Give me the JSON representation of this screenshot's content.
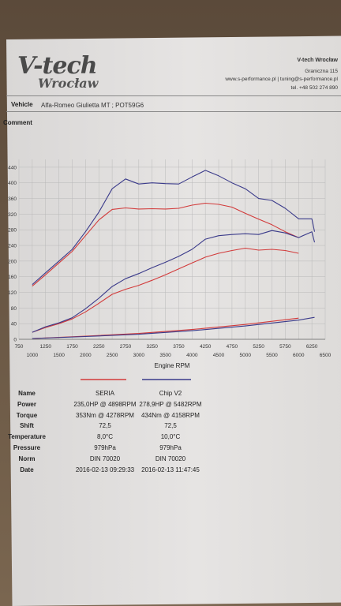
{
  "header": {
    "logo_main": "V-tech",
    "logo_sub": "Wrocław",
    "company": "V-tech Wrocław",
    "street": "Graniczna 115",
    "web": "www.s-performance.pl | tuning@s-performance.pl",
    "phone": "tel. +48 502 274 890"
  },
  "info": {
    "vehicle_label": "Vehicle",
    "vehicle_value": "Alfa-Romeo Giulietta MT ; POT59G6",
    "comment_label": "Comment"
  },
  "colors": {
    "seria": "#d23a3a",
    "chip": "#3a3a8a",
    "grid": "#b9b9b9"
  },
  "chart_data": {
    "type": "line",
    "xlabel": "Engine RPM",
    "xlim": [
      750,
      6500
    ],
    "ylim": [
      0,
      460
    ],
    "yticks": [
      0,
      40,
      80,
      120,
      160,
      200,
      240,
      280,
      320,
      360,
      400,
      440
    ],
    "xticks_top": [
      750,
      1250,
      1750,
      2250,
      2750,
      3250,
      3750,
      4250,
      4750,
      5250,
      5750,
      6250
    ],
    "xticks_bottom": [
      1000,
      1500,
      2000,
      2500,
      3000,
      3500,
      4000,
      4500,
      5000,
      5500,
      6000,
      6500
    ],
    "series": [
      {
        "name": "SERIA",
        "kind": "torque",
        "color": "#d23a3a",
        "x": [
          1000,
          1250,
          1500,
          1750,
          2000,
          2250,
          2500,
          2750,
          3000,
          3250,
          3500,
          3750,
          4000,
          4250,
          4500,
          4750,
          5000,
          5250,
          5500,
          5750,
          6000
        ],
        "y": [
          136,
          165,
          195,
          225,
          265,
          305,
          332,
          336,
          333,
          334,
          333,
          335,
          343,
          348,
          345,
          338,
          322,
          307,
          293,
          275,
          260
        ]
      },
      {
        "name": "Chip V2",
        "kind": "torque",
        "color": "#3a3a8a",
        "x": [
          1000,
          1250,
          1500,
          1750,
          2000,
          2250,
          2500,
          2750,
          3000,
          3250,
          3500,
          3750,
          4000,
          4250,
          4500,
          4750,
          5000,
          5250,
          5500,
          5750,
          6000,
          6250,
          6300
        ],
        "y": [
          140,
          170,
          200,
          230,
          275,
          325,
          385,
          410,
          397,
          400,
          398,
          397,
          415,
          432,
          418,
          400,
          385,
          360,
          355,
          335,
          308,
          308,
          275
        ]
      },
      {
        "name": "SERIA",
        "kind": "power",
        "color": "#d23a3a",
        "x": [
          1000,
          1250,
          1500,
          1750,
          2000,
          2250,
          2500,
          2750,
          3000,
          3250,
          3500,
          3750,
          4000,
          4250,
          4500,
          4750,
          5000,
          5250,
          5500,
          5750,
          6000
        ],
        "y": [
          18,
          30,
          40,
          52,
          70,
          92,
          115,
          128,
          138,
          151,
          165,
          180,
          195,
          210,
          220,
          227,
          233,
          228,
          230,
          227,
          220
        ]
      },
      {
        "name": "Chip V2",
        "kind": "power",
        "color": "#3a3a8a",
        "x": [
          1000,
          1250,
          1500,
          1750,
          2000,
          2250,
          2500,
          2750,
          3000,
          3250,
          3500,
          3750,
          4000,
          4250,
          4500,
          4750,
          5000,
          5250,
          5500,
          5750,
          6000,
          6250,
          6300
        ],
        "y": [
          18,
          32,
          42,
          55,
          78,
          105,
          135,
          155,
          168,
          183,
          197,
          212,
          230,
          256,
          265,
          268,
          270,
          268,
          278,
          272,
          260,
          275,
          248
        ]
      },
      {
        "name": "SERIA",
        "kind": "loss",
        "color": "#d23a3a",
        "x": [
          1000,
          2000,
          3000,
          4000,
          5000,
          6000
        ],
        "y": [
          2,
          8,
          15,
          25,
          38,
          54
        ]
      },
      {
        "name": "Chip V2",
        "kind": "loss",
        "color": "#3a3a8a",
        "x": [
          1000,
          2000,
          3000,
          4000,
          5000,
          6000,
          6300
        ],
        "y": [
          2,
          7,
          13,
          22,
          34,
          49,
          56
        ]
      }
    ]
  },
  "table": {
    "columns": [
      "",
      "SERIA",
      "Chip V2"
    ],
    "rows": [
      {
        "name": "Name",
        "a": "SERIA",
        "b": "Chip V2"
      },
      {
        "name": "Power",
        "a": "235,0HP @ 4898RPM",
        "b": "278,9HP @ 5482RPM"
      },
      {
        "name": "Torque",
        "a": "353Nm @ 4278RPM",
        "b": "434Nm @ 4158RPM"
      },
      {
        "name": "Shift",
        "a": "72,5",
        "b": "72,5"
      },
      {
        "name": "Temperature",
        "a": "8,0°C",
        "b": "10,0°C"
      },
      {
        "name": "Pressure",
        "a": "979hPa",
        "b": "979hPa"
      },
      {
        "name": "Norm",
        "a": "DIN 70020",
        "b": "DIN 70020"
      },
      {
        "name": "Date",
        "a": "2016-02-13 09:29:33",
        "b": "2016-02-13 11:47:45"
      }
    ]
  }
}
